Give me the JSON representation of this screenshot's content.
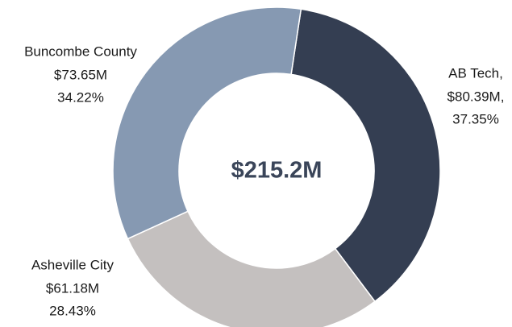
{
  "chart_data": {
    "type": "donut",
    "center_label": "$215.2M",
    "categories": [
      "AB Tech,",
      "Asheville City",
      "Buncombe County"
    ],
    "values": [
      80.39,
      61.18,
      73.65
    ],
    "value_labels": [
      "$80.39M,",
      "$61.18M",
      "$73.65M"
    ],
    "shares": [
      37.35,
      28.43,
      34.22
    ],
    "share_labels": [
      "37.35%",
      "28.43%",
      "34.22%"
    ],
    "colors": [
      "#343e52",
      "#c4c0bf",
      "#8699b2"
    ]
  }
}
